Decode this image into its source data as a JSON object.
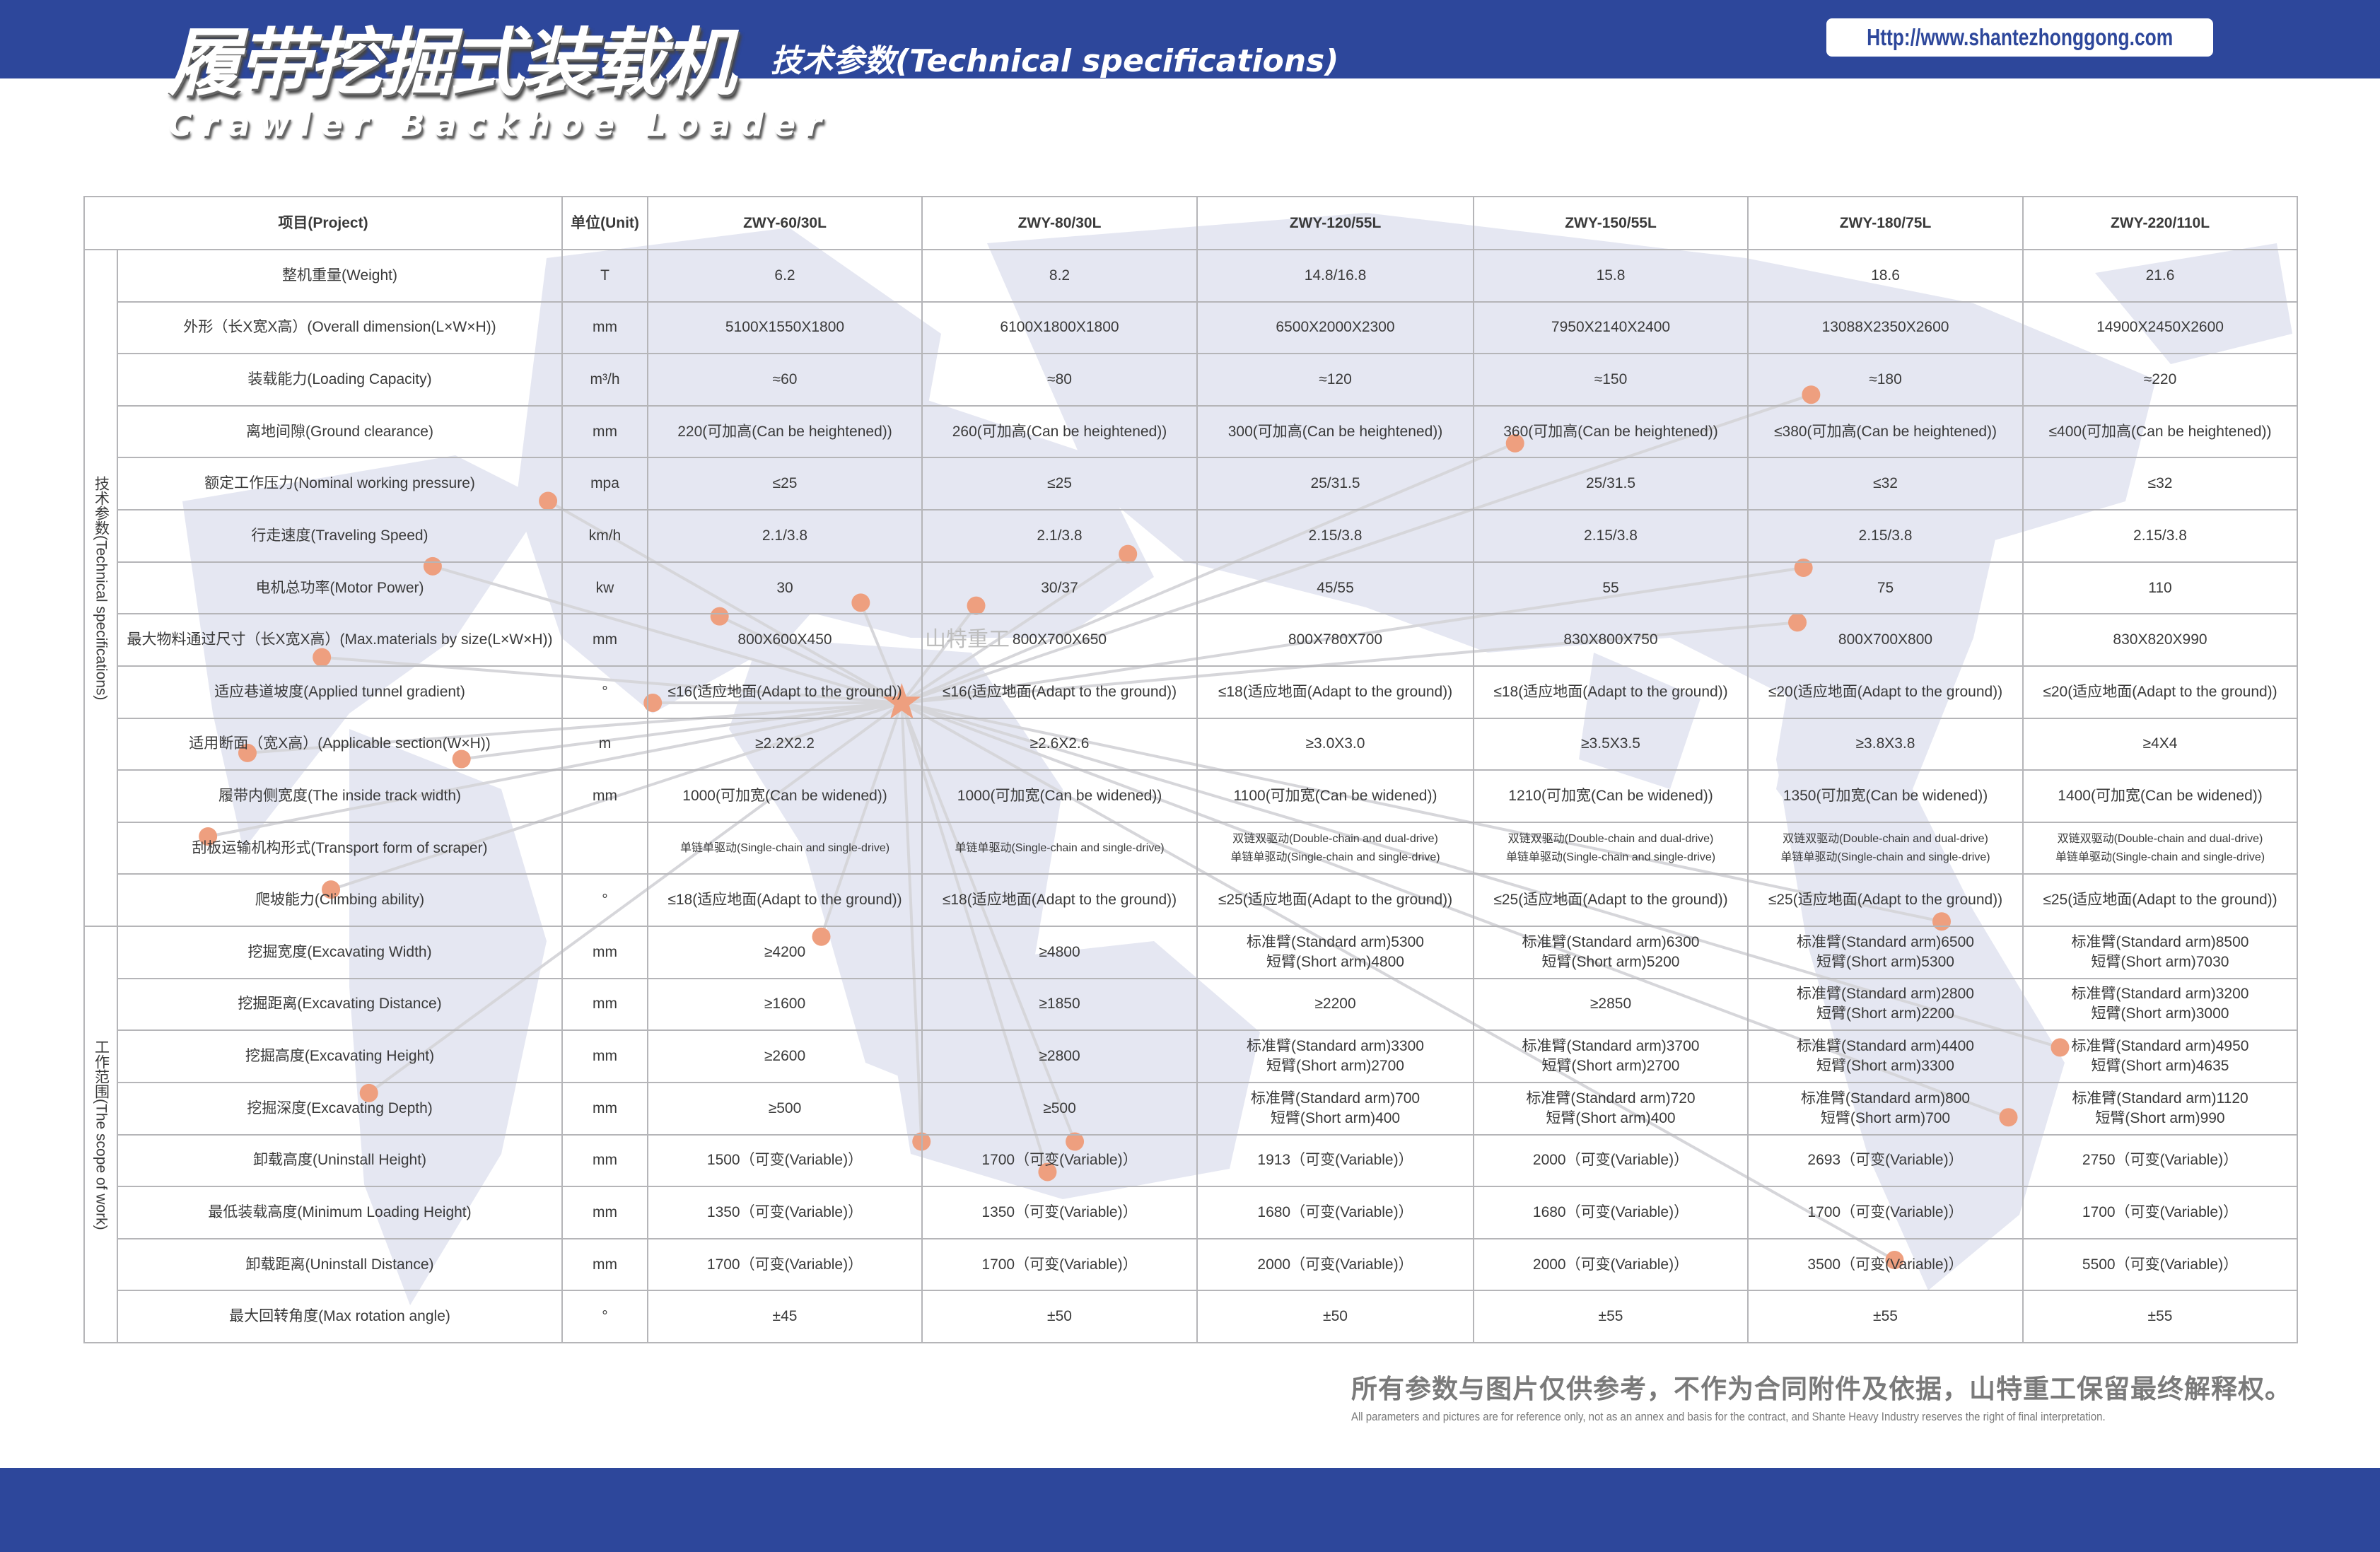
{
  "header": {
    "title_cn": "履带挖掘式装载机",
    "title_en": "Crawler Backhoe Loader",
    "subtitle": "技术参数(Technical specifications)",
    "url": "Http://www.shantezhonggong.com"
  },
  "watermark": "山特重工",
  "colors": {
    "brand_blue": "#2d479b",
    "map": "#e5e7f2",
    "dot": "#ee9f7f"
  },
  "table": {
    "headers": {
      "project": "项目(Project)",
      "unit": "单位(Unit)"
    },
    "models": [
      "ZWY-60/30L",
      "ZWY-80/30L",
      "ZWY-120/55L",
      "ZWY-150/55L",
      "ZWY-180/75L",
      "ZWY-220/110L"
    ],
    "groups": [
      {
        "label": "技术参数(Technical specifications)",
        "rows": 13
      },
      {
        "label": "工作范围(The scope of work)",
        "rows": 8
      }
    ],
    "rows": [
      {
        "item": "整机重量(Weight)",
        "unit": "T",
        "values": [
          [
            "6.2"
          ],
          [
            "8.2"
          ],
          [
            "14.8/16.8"
          ],
          [
            "15.8"
          ],
          [
            "18.6"
          ],
          [
            "21.6"
          ]
        ]
      },
      {
        "item": "外形（长X宽X高）(Overall dimension(L×W×H))",
        "unit": "mm",
        "values": [
          [
            "5100X1550X1800"
          ],
          [
            "6100X1800X1800"
          ],
          [
            "6500X2000X2300"
          ],
          [
            "7950X2140X2400"
          ],
          [
            "13088X2350X2600"
          ],
          [
            "14900X2450X2600"
          ]
        ]
      },
      {
        "item": "装载能力(Loading Capacity)",
        "unit": "m³/h",
        "values": [
          [
            "≈60"
          ],
          [
            "≈80"
          ],
          [
            "≈120"
          ],
          [
            "≈150"
          ],
          [
            "≈180"
          ],
          [
            "≈220"
          ]
        ]
      },
      {
        "item": "离地间隙(Ground clearance)",
        "unit": "mm",
        "values": [
          [
            "220(可加高(Can be heightened))"
          ],
          [
            "260(可加高(Can be heightened))"
          ],
          [
            "300(可加高(Can be heightened))"
          ],
          [
            "360(可加高(Can be heightened))"
          ],
          [
            "≤380(可加高(Can be heightened))"
          ],
          [
            "≤400(可加高(Can be heightened))"
          ]
        ]
      },
      {
        "item": "额定工作压力(Nominal working pressure)",
        "unit": "mpa",
        "values": [
          [
            "≤25"
          ],
          [
            "≤25"
          ],
          [
            "25/31.5"
          ],
          [
            "25/31.5"
          ],
          [
            "≤32"
          ],
          [
            "≤32"
          ]
        ]
      },
      {
        "item": "行走速度(Traveling Speed)",
        "unit": "km/h",
        "values": [
          [
            "2.1/3.8"
          ],
          [
            "2.1/3.8"
          ],
          [
            "2.15/3.8"
          ],
          [
            "2.15/3.8"
          ],
          [
            "2.15/3.8"
          ],
          [
            "2.15/3.8"
          ]
        ]
      },
      {
        "item": "电机总功率(Motor Power)",
        "unit": "kw",
        "values": [
          [
            "30"
          ],
          [
            "30/37"
          ],
          [
            "45/55"
          ],
          [
            "55"
          ],
          [
            "75"
          ],
          [
            "110"
          ]
        ]
      },
      {
        "item": "最大物料通过尺寸（长X宽X高）(Max.materials by size(L×W×H))",
        "unit": "mm",
        "values": [
          [
            "800X600X450"
          ],
          [
            "800X700X650"
          ],
          [
            "800X780X700"
          ],
          [
            "830X800X750"
          ],
          [
            "800X700X800"
          ],
          [
            "830X820X990"
          ]
        ]
      },
      {
        "item": "适应巷道坡度(Applied tunnel gradient)",
        "unit": "°",
        "values": [
          [
            "≤16(适应地面(Adapt to the ground))"
          ],
          [
            "≤16(适应地面(Adapt to the ground))"
          ],
          [
            "≤18(适应地面(Adapt to the ground))"
          ],
          [
            "≤18(适应地面(Adapt to the ground))"
          ],
          [
            "≤20(适应地面(Adapt to the ground))"
          ],
          [
            "≤20(适应地面(Adapt to the ground))"
          ]
        ]
      },
      {
        "item": "适用断面（宽X高）(Applicable section(W×H))",
        "unit": "m",
        "values": [
          [
            "≥2.2X2.2"
          ],
          [
            "≥2.6X2.6"
          ],
          [
            "≥3.0X3.0"
          ],
          [
            "≥3.5X3.5"
          ],
          [
            "≥3.8X3.8"
          ],
          [
            "≥4X4"
          ]
        ]
      },
      {
        "item": "履带内侧宽度(The inside track width)",
        "unit": "mm",
        "values": [
          [
            "1000(可加宽(Can be widened))"
          ],
          [
            "1000(可加宽(Can be widened))"
          ],
          [
            "1100(可加宽(Can be widened))"
          ],
          [
            "1210(可加宽(Can be widened))"
          ],
          [
            "1350(可加宽(Can be widened))"
          ],
          [
            "1400(可加宽(Can be widened))"
          ]
        ]
      },
      {
        "item": "刮板运输机构形式(Transport form of scraper)",
        "unit": "",
        "small": true,
        "values": [
          [
            "单链单驱动(Single-chain and single-drive)"
          ],
          [
            "单链单驱动(Single-chain and single-drive)"
          ],
          [
            "双链双驱动(Double-chain and dual-drive)",
            "单链单驱动(Single-chain and single-drive)"
          ],
          [
            "双链双驱动(Double-chain and dual-drive)",
            "单链单驱动(Single-chain and single-drive)"
          ],
          [
            "双链双驱动(Double-chain and dual-drive)",
            "单链单驱动(Single-chain and single-drive)"
          ],
          [
            "双链双驱动(Double-chain and dual-drive)",
            "单链单驱动(Single-chain and single-drive)"
          ]
        ]
      },
      {
        "item": "爬坡能力(Climbing ability)",
        "unit": "°",
        "values": [
          [
            "≤18(适应地面(Adapt to the ground))"
          ],
          [
            "≤18(适应地面(Adapt to the ground))"
          ],
          [
            "≤25(适应地面(Adapt to the ground))"
          ],
          [
            "≤25(适应地面(Adapt to the ground))"
          ],
          [
            "≤25(适应地面(Adapt to the ground))"
          ],
          [
            "≤25(适应地面(Adapt to the ground))"
          ]
        ]
      },
      {
        "item": "挖掘宽度(Excavating Width)",
        "unit": "mm",
        "values": [
          [
            "≥4200"
          ],
          [
            "≥4800"
          ],
          [
            "标准臂(Standard arm)5300",
            "短臂(Short arm)4800"
          ],
          [
            "标准臂(Standard arm)6300",
            "短臂(Short arm)5200"
          ],
          [
            "标准臂(Standard arm)6500",
            "短臂(Short arm)5300"
          ],
          [
            "标准臂(Standard arm)8500",
            "短臂(Short arm)7030"
          ]
        ]
      },
      {
        "item": "挖掘距离(Excavating Distance)",
        "unit": "mm",
        "values": [
          [
            "≥1600"
          ],
          [
            "≥1850"
          ],
          [
            "≥2200"
          ],
          [
            "≥2850"
          ],
          [
            "标准臂(Standard arm)2800",
            "短臂(Short arm)2200"
          ],
          [
            "标准臂(Standard arm)3200",
            "短臂(Short arm)3000"
          ]
        ]
      },
      {
        "item": "挖掘高度(Excavating Height)",
        "unit": "mm",
        "values": [
          [
            "≥2600"
          ],
          [
            "≥2800"
          ],
          [
            "标准臂(Standard arm)3300",
            "短臂(Short arm)2700"
          ],
          [
            "标准臂(Standard arm)3700",
            "短臂(Short arm)2700"
          ],
          [
            "标准臂(Standard arm)4400",
            "短臂(Short arm)3300"
          ],
          [
            "标准臂(Standard arm)4950",
            "短臂(Short arm)4635"
          ]
        ]
      },
      {
        "item": "挖掘深度(Excavating Depth)",
        "unit": "mm",
        "values": [
          [
            "≥500"
          ],
          [
            "≥500"
          ],
          [
            "标准臂(Standard arm)700",
            "短臂(Short arm)400"
          ],
          [
            "标准臂(Standard arm)720",
            "短臂(Short arm)400"
          ],
          [
            "标准臂(Standard arm)800",
            "短臂(Short arm)700"
          ],
          [
            "标准臂(Standard arm)1120",
            "短臂(Short arm)990"
          ]
        ]
      },
      {
        "item": "卸载高度(Uninstall Height)",
        "unit": "mm",
        "values": [
          [
            "1500（可变(Variable)）"
          ],
          [
            "1700（可变(Variable)）"
          ],
          [
            "1913（可变(Variable)）"
          ],
          [
            "2000（可变(Variable)）"
          ],
          [
            "2693（可变(Variable)）"
          ],
          [
            "2750（可变(Variable)）"
          ]
        ]
      },
      {
        "item": "最低装载高度(Minimum Loading Height)",
        "unit": "mm",
        "values": [
          [
            "1350（可变(Variable)）"
          ],
          [
            "1350（可变(Variable)）"
          ],
          [
            "1680（可变(Variable)）"
          ],
          [
            "1680（可变(Variable)）"
          ],
          [
            "1700（可变(Variable)）"
          ],
          [
            "1700（可变(Variable)）"
          ]
        ]
      },
      {
        "item": "卸载距离(Uninstall Distance)",
        "unit": "mm",
        "values": [
          [
            "1700（可变(Variable)）"
          ],
          [
            "1700（可变(Variable)）"
          ],
          [
            "2000（可变(Variable)）"
          ],
          [
            "2000（可变(Variable)）"
          ],
          [
            "3500（可变(Variable)）"
          ],
          [
            "5500（可变(Variable)）"
          ]
        ]
      },
      {
        "item": "最大回转角度(Max rotation angle)",
        "unit": "°",
        "values": [
          [
            "±45"
          ],
          [
            "±50"
          ],
          [
            "±50"
          ],
          [
            "±55"
          ],
          [
            "±55"
          ],
          [
            "±55"
          ]
        ]
      }
    ]
  },
  "footer": {
    "disclaimer_cn": "所有参数与图片仅供参考，不作为合同附件及依据，山特重工保留最终解释权。",
    "disclaimer_en": "All parameters and pictures are for reference only, not as an annex and basis for the contract, and Shante Heavy Industry reserves the right of final interpretation."
  }
}
